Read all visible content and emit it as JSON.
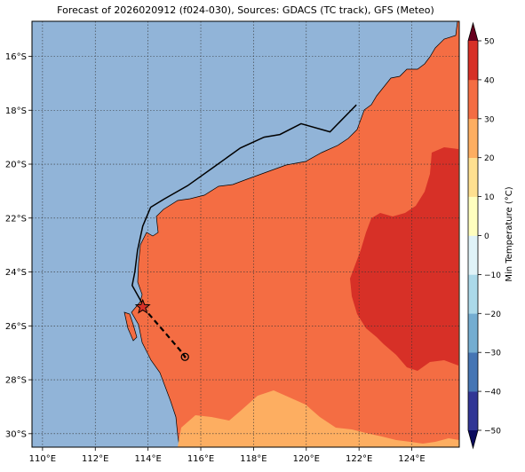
{
  "title": "Forecast of 2026020912 (f024-030), Sources: GDACS (TC track), GFS (Meteo)",
  "map": {
    "lon_range": [
      109.6,
      125.8
    ],
    "lat_range": [
      -30.5,
      -14.7
    ],
    "lon_ticks": [
      {
        "value": 110,
        "label": "110°E"
      },
      {
        "value": 112,
        "label": "112°E"
      },
      {
        "value": 114,
        "label": "114°E"
      },
      {
        "value": 116,
        "label": "116°E"
      },
      {
        "value": 118,
        "label": "118°E"
      },
      {
        "value": 120,
        "label": "120°E"
      },
      {
        "value": 122,
        "label": "122°E"
      },
      {
        "value": 124,
        "label": "124°E"
      }
    ],
    "lat_ticks": [
      {
        "value": -16,
        "label": "16°S"
      },
      {
        "value": -18,
        "label": "18°S"
      },
      {
        "value": -20,
        "label": "20°S"
      },
      {
        "value": -22,
        "label": "22°S"
      },
      {
        "value": -24,
        "label": "24°S"
      },
      {
        "value": -26,
        "label": "26°S"
      },
      {
        "value": -28,
        "label": "28°S"
      },
      {
        "value": -30,
        "label": "30°S"
      }
    ],
    "gridlines": "dotted",
    "colors": {
      "ocean": "#91b4d8",
      "land_20_30": "#f46d43",
      "land_30_40": "#d73027",
      "land_10_20": "#fdae61",
      "coastline": "#000000",
      "track": "#000000",
      "storm_marker": "#d73027"
    }
  },
  "tc_track": {
    "past_track": [
      [
        121.9,
        -17.8
      ],
      [
        120.9,
        -18.8
      ],
      [
        119.8,
        -18.5
      ],
      [
        119.0,
        -18.9
      ],
      [
        118.4,
        -19.0
      ],
      [
        117.5,
        -19.4
      ],
      [
        116.5,
        -20.1
      ],
      [
        115.5,
        -20.8
      ],
      [
        114.6,
        -21.3
      ],
      [
        114.1,
        -21.6
      ],
      [
        113.8,
        -22.3
      ],
      [
        113.6,
        -23.2
      ],
      [
        113.5,
        -24.0
      ],
      [
        113.4,
        -24.5
      ],
      [
        113.8,
        -25.2
      ]
    ],
    "current_position": [
      113.8,
      -25.3
    ],
    "forecast_track": [
      [
        113.8,
        -25.3
      ],
      [
        114.6,
        -26.2
      ],
      [
        115.3,
        -27.0
      ],
      [
        115.4,
        -27.15
      ]
    ],
    "forecast_end": [
      115.4,
      -27.15
    ]
  },
  "colorbar": {
    "label": "Min Temperature (°C)",
    "min": -50,
    "max": 50,
    "levels": [
      -50,
      -40,
      -30,
      -20,
      -10,
      0,
      10,
      20,
      30,
      40,
      50
    ],
    "colors": [
      "#313695",
      "#4575b4",
      "#74add1",
      "#abd9e9",
      "#e0f3f8",
      "#ffffbf",
      "#fee090",
      "#fdae61",
      "#f46d43",
      "#d73027",
      "#a50026"
    ],
    "under_color": "#0b0b5e",
    "over_color": "#67001f",
    "ticks": [
      {
        "value": 50,
        "label": "50"
      },
      {
        "value": 40,
        "label": "40"
      },
      {
        "value": 30,
        "label": "30"
      },
      {
        "value": 20,
        "label": "20"
      },
      {
        "value": 10,
        "label": "10"
      },
      {
        "value": 0,
        "label": "0"
      },
      {
        "value": -10,
        "label": "−10"
      },
      {
        "value": -20,
        "label": "−20"
      },
      {
        "value": -30,
        "label": "−30"
      },
      {
        "value": -40,
        "label": "−40"
      },
      {
        "value": -50,
        "label": "−50"
      }
    ]
  }
}
